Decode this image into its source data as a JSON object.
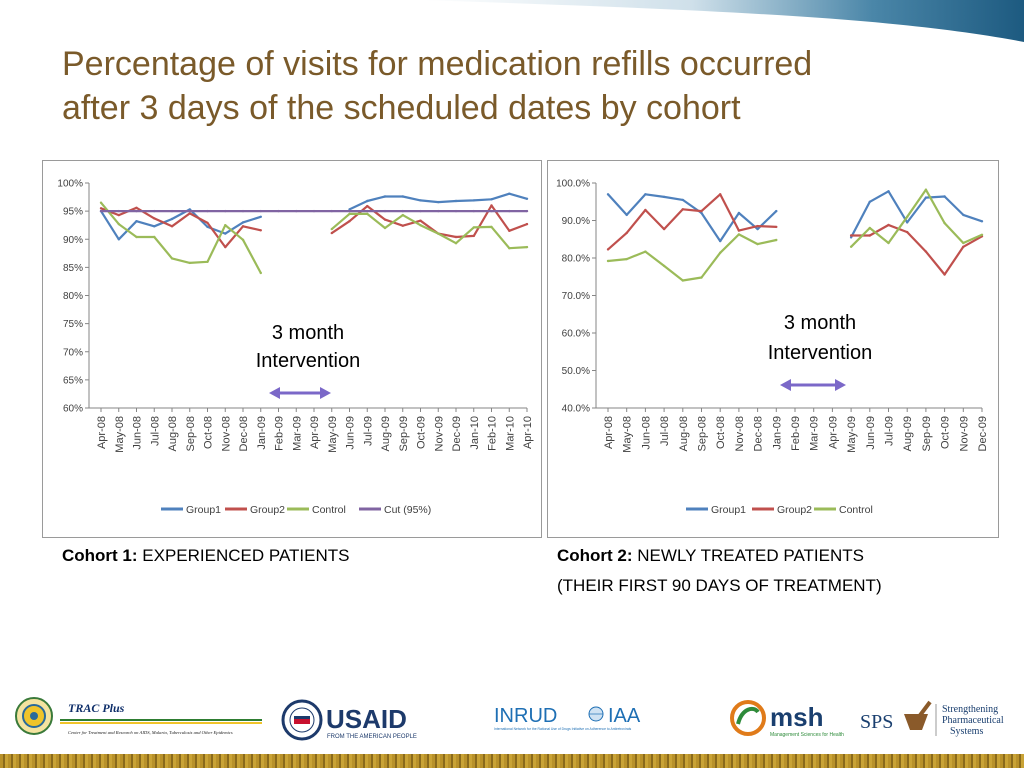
{
  "slide": {
    "title_lines": [
      "Percentage of visits for medication refills occurred",
      "after 3 days of the scheduled dates by cohort"
    ]
  },
  "colors": {
    "group1": "#4f81bd",
    "group2": "#c0504d",
    "control": "#9bbb59",
    "cut": "#8064a2",
    "title": "#7a5a2a",
    "arrow": "#7b68c8"
  },
  "captions": {
    "cohort1": {
      "label": "Cohort 1:",
      "text": "EXPERIENCED PATIENTS"
    },
    "cohort2": {
      "label": "Cohort 2:",
      "text_line1": "NEWLY TREATED PATIENTS",
      "text_line2": "(THEIR FIRST 90 DAYS OF TREATMENT)"
    }
  },
  "logos": {
    "trac_title": "TRAC Plus",
    "trac_sub": "Center for Treatment and Research on AIDS, Malaria, Tuberculosis and Other Epidemics",
    "usaid": "USAID",
    "usaid_sub": "FROM THE AMERICAN PEOPLE",
    "inrud": "INRUD",
    "inrud_sub": "International Network for the Rational Use of Drugs Initiative on Adherence to Antiretrovirals",
    "iaa": "IAA",
    "msh": "msh",
    "msh_sub": "Management Sciences for Health",
    "sps": "SPS",
    "sps_text": [
      "Strengthening",
      "Pharmaceutical",
      "Systems"
    ]
  },
  "chart_data": [
    {
      "type": "line",
      "x": [
        "Apr-08",
        "May-08",
        "Jun-08",
        "Jul-08",
        "Aug-08",
        "Sep-08",
        "Oct-08",
        "Nov-08",
        "Dec-08",
        "Jan-09",
        "Feb-09",
        "Mar-09",
        "Apr-09",
        "May-09",
        "Jun-09",
        "Jul-09",
        "Aug-09",
        "Sep-09",
        "Oct-09",
        "Nov-09",
        "Dec-09",
        "Jan-10",
        "Feb-10",
        "Mar-10",
        "Apr-10"
      ],
      "ylim": [
        60,
        100
      ],
      "y_ticks": [
        "60%",
        "65%",
        "70%",
        "75%",
        "80%",
        "85%",
        "90%",
        "95%",
        "100%"
      ],
      "grid": false,
      "legend_position": "bottom",
      "annotation": "3 month\nIntervention",
      "annotation_lines": [
        "3 month",
        "Intervention"
      ],
      "series": [
        {
          "name": "Group1",
          "color_key": "group1",
          "values": [
            95.0,
            90.0,
            93.2,
            92.3,
            93.6,
            95.3,
            92.2,
            91.0,
            93.0,
            94.0,
            null,
            null,
            null,
            null,
            95.3,
            96.8,
            97.6,
            97.6,
            96.9,
            96.6,
            96.8,
            96.9,
            97.1,
            98.1,
            97.2
          ]
        },
        {
          "name": "Group2",
          "color_key": "group2",
          "values": [
            95.5,
            94.3,
            95.6,
            93.7,
            92.3,
            94.6,
            92.9,
            88.6,
            92.3,
            91.6,
            null,
            null,
            null,
            91.1,
            93.2,
            95.9,
            93.5,
            92.4,
            93.3,
            91.0,
            90.4,
            90.6,
            96.0,
            91.5,
            92.7
          ]
        },
        {
          "name": "Control",
          "color_key": "control",
          "values": [
            96.5,
            92.7,
            90.4,
            90.4,
            86.6,
            85.8,
            86.0,
            92.5,
            89.9,
            84.0,
            null,
            null,
            null,
            91.8,
            94.5,
            94.5,
            92.0,
            94.3,
            92.5,
            91.0,
            89.3,
            92.1,
            92.2,
            88.4,
            88.6
          ]
        },
        {
          "name": "Cut (95%)",
          "color_key": "cut",
          "values": [
            95,
            95,
            95,
            95,
            95,
            95,
            95,
            95,
            95,
            95,
            95,
            95,
            95,
            95,
            95,
            95,
            95,
            95,
            95,
            95,
            95,
            95,
            95,
            95,
            95
          ]
        }
      ]
    },
    {
      "type": "line",
      "x": [
        "Apr-08",
        "May-08",
        "Jun-08",
        "Jul-08",
        "Aug-08",
        "Sep-08",
        "Oct-08",
        "Nov-08",
        "Dec-08",
        "Jan-09",
        "Feb-09",
        "Mar-09",
        "Apr-09",
        "May-09",
        "Jun-09",
        "Jul-09",
        "Aug-09",
        "Sep-09",
        "Oct-09",
        "Nov-09",
        "Dec-09"
      ],
      "ylim": [
        40,
        100
      ],
      "y_ticks": [
        "40.0%",
        "50.0%",
        "60.0%",
        "70.0%",
        "80.0%",
        "90.0%",
        "100.0%"
      ],
      "grid": false,
      "legend_position": "bottom",
      "annotation": "3 month\nIntervention",
      "annotation_lines": [
        "3 month",
        "Intervention"
      ],
      "series": [
        {
          "name": "Group1",
          "color_key": "group1",
          "values": [
            97.0,
            91.5,
            97.0,
            96.3,
            95.5,
            92.0,
            84.5,
            92.0,
            87.7,
            92.5,
            null,
            null,
            null,
            85.5,
            95.0,
            97.8,
            89.5,
            96.1,
            96.4,
            91.5,
            89.8
          ]
        },
        {
          "name": "Group2",
          "color_key": "group2",
          "values": [
            82.3,
            86.7,
            92.8,
            87.7,
            93.0,
            92.5,
            97.0,
            87.3,
            88.5,
            88.3,
            null,
            null,
            null,
            86.0,
            86.0,
            88.8,
            86.9,
            81.7,
            75.6,
            83.0,
            85.8
          ]
        },
        {
          "name": "Control",
          "color_key": "control",
          "values": [
            79.2,
            79.7,
            81.7,
            77.9,
            74.0,
            74.8,
            81.4,
            86.3,
            83.7,
            84.8,
            null,
            null,
            null,
            83.0,
            88.0,
            84.0,
            91.0,
            98.2,
            89.3,
            84.0,
            86.2
          ]
        }
      ]
    }
  ]
}
